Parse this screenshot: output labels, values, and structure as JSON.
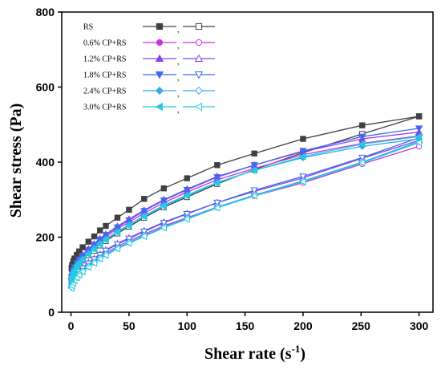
{
  "chart_data": {
    "type": "line",
    "xlabel": "Shear rate (s",
    "xlabel_sup": "-1",
    "xlabel_close": ")",
    "ylabel": "Shear stress (Pa)",
    "xlim": [
      -8,
      312
    ],
    "ylim": [
      0,
      800
    ],
    "xticks": [
      0,
      50,
      100,
      150,
      200,
      250,
      300
    ],
    "yticks": [
      0,
      200,
      400,
      600,
      800
    ],
    "legend_position": "top-left",
    "legend_separator": ",",
    "series": [
      {
        "name": "RS",
        "color": "#404040",
        "marker": "square",
        "up": {
          "x": [
            0.5,
            1,
            2,
            3,
            5,
            7,
            10,
            15,
            20,
            25,
            30,
            40,
            50,
            63,
            80,
            100,
            126,
            158,
            200,
            251,
            300
          ],
          "y": [
            118,
            126,
            136,
            143,
            153,
            162,
            173,
            188,
            202,
            218,
            230,
            252,
            273,
            302,
            330,
            357,
            392,
            423,
            462,
            498,
            522
          ]
        },
        "down": {
          "x": [
            0.5,
            1,
            2,
            3,
            5,
            7,
            10,
            15,
            20,
            25,
            30,
            40,
            50,
            63,
            80,
            100,
            126,
            158,
            200,
            251,
            300
          ],
          "y": [
            90,
            97,
            105,
            111,
            120,
            128,
            138,
            152,
            164,
            178,
            190,
            210,
            228,
            252,
            280,
            307,
            342,
            380,
            425,
            475,
            522
          ]
        }
      },
      {
        "name": "0.6% CP+RS",
        "color": "#cc33dd",
        "marker": "circle",
        "up": {
          "x": [
            0.5,
            1,
            2,
            3,
            5,
            7,
            10,
            15,
            20,
            25,
            30,
            40,
            50,
            63,
            80,
            100,
            126,
            158,
            200,
            251,
            300
          ],
          "y": [
            92,
            100,
            110,
            118,
            128,
            137,
            148,
            163,
            176,
            190,
            202,
            222,
            240,
            264,
            292,
            320,
            353,
            383,
            420,
            450,
            470
          ]
        },
        "down": {
          "x": [
            0.5,
            1,
            2,
            3,
            5,
            7,
            10,
            15,
            20,
            25,
            30,
            40,
            50,
            63,
            80,
            100,
            126,
            158,
            200,
            251,
            300
          ],
          "y": [
            70,
            76,
            84,
            90,
            98,
            105,
            114,
            126,
            137,
            148,
            158,
            175,
            190,
            208,
            230,
            252,
            280,
            310,
            345,
            395,
            442
          ]
        }
      },
      {
        "name": "1.2% CP+RS",
        "color": "#8844ee",
        "marker": "triangle-up",
        "up": {
          "x": [
            0.5,
            1,
            2,
            3,
            5,
            7,
            10,
            15,
            20,
            25,
            30,
            40,
            50,
            63,
            80,
            100,
            126,
            158,
            200,
            251,
            300
          ],
          "y": [
            96,
            104,
            114,
            122,
            133,
            142,
            153,
            169,
            182,
            196,
            208,
            229,
            248,
            272,
            300,
            328,
            362,
            392,
            428,
            462,
            480
          ]
        },
        "down": {
          "x": [
            0.5,
            1,
            2,
            3,
            5,
            7,
            10,
            15,
            20,
            25,
            30,
            40,
            50,
            63,
            80,
            100,
            126,
            158,
            200,
            251,
            300
          ],
          "y": [
            74,
            80,
            88,
            94,
            102,
            110,
            119,
            132,
            143,
            155,
            166,
            183,
            198,
            217,
            240,
            263,
            292,
            322,
            358,
            410,
            458
          ]
        }
      },
      {
        "name": "1.8% CP+RS",
        "color": "#4466ee",
        "marker": "triangle-down",
        "up": {
          "x": [
            0.5,
            1,
            2,
            3,
            5,
            7,
            10,
            15,
            20,
            25,
            30,
            40,
            50,
            63,
            80,
            100,
            126,
            158,
            200,
            251,
            300
          ],
          "y": [
            94,
            102,
            112,
            120,
            131,
            140,
            151,
            166,
            180,
            194,
            206,
            226,
            245,
            270,
            298,
            326,
            360,
            392,
            430,
            468,
            490
          ]
        },
        "down": {
          "x": [
            0.5,
            1,
            2,
            3,
            5,
            7,
            10,
            15,
            20,
            25,
            30,
            40,
            50,
            63,
            80,
            100,
            126,
            158,
            200,
            251,
            300
          ],
          "y": [
            72,
            78,
            86,
            92,
            100,
            108,
            117,
            130,
            141,
            153,
            164,
            181,
            196,
            215,
            238,
            262,
            292,
            325,
            362,
            412,
            465
          ]
        }
      },
      {
        "name": "2.4% CP+RS",
        "color": "#33aaee",
        "marker": "diamond",
        "up": {
          "x": [
            0.5,
            1,
            2,
            3,
            5,
            7,
            10,
            15,
            20,
            25,
            30,
            40,
            50,
            63,
            80,
            100,
            126,
            158,
            200,
            251,
            300
          ],
          "y": [
            88,
            96,
            106,
            113,
            124,
            132,
            142,
            157,
            170,
            183,
            195,
            215,
            233,
            257,
            285,
            312,
            346,
            378,
            412,
            442,
            462
          ]
        },
        "down": {
          "x": [
            0.5,
            1,
            2,
            3,
            5,
            7,
            10,
            15,
            20,
            25,
            30,
            40,
            50,
            63,
            80,
            100,
            126,
            158,
            200,
            251,
            300
          ],
          "y": [
            66,
            72,
            80,
            86,
            94,
            101,
            110,
            122,
            133,
            144,
            154,
            171,
            186,
            204,
            227,
            250,
            280,
            312,
            350,
            400,
            455
          ]
        }
      },
      {
        "name": "3.0% CP+RS",
        "color": "#22ccdd",
        "marker": "triangle-left",
        "up": {
          "x": [
            0.5,
            1,
            2,
            3,
            5,
            7,
            10,
            15,
            20,
            25,
            30,
            40,
            50,
            63,
            80,
            100,
            126,
            158,
            200,
            251,
            300
          ],
          "y": [
            86,
            94,
            104,
            111,
            122,
            130,
            140,
            155,
            168,
            181,
            193,
            213,
            231,
            255,
            283,
            310,
            345,
            378,
            415,
            448,
            468
          ]
        },
        "down": {
          "x": [
            0.5,
            1,
            2,
            3,
            5,
            7,
            10,
            15,
            20,
            25,
            30,
            40,
            50,
            63,
            80,
            100,
            126,
            158,
            200,
            251,
            300
          ],
          "y": [
            64,
            70,
            78,
            84,
            92,
            99,
            108,
            120,
            131,
            142,
            152,
            169,
            184,
            202,
            225,
            248,
            278,
            310,
            348,
            398,
            452
          ]
        }
      }
    ]
  }
}
